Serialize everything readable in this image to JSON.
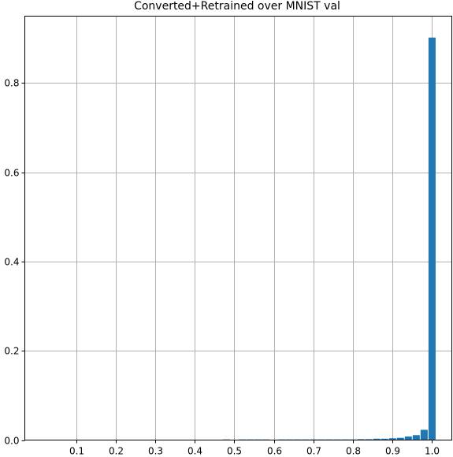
{
  "chart_data": {
    "type": "bar",
    "title": "Converted+Retrained over MNIST val",
    "xlabel": "",
    "ylabel": "",
    "xlim": [
      -0.03,
      1.05
    ],
    "ylim": [
      0,
      0.95
    ],
    "grid": true,
    "bar_width": 0.018,
    "bar_color": "#1f77b4",
    "x_ticks": [
      0.1,
      0.2,
      0.3,
      0.4,
      0.5,
      0.6,
      0.7,
      0.8,
      0.9,
      1.0
    ],
    "x_tick_labels": [
      "0.1",
      "0.2",
      "0.3",
      "0.4",
      "0.5",
      "0.6",
      "0.7",
      "0.8",
      "0.9",
      "1.0"
    ],
    "y_ticks": [
      0.0,
      0.2,
      0.4,
      0.6,
      0.8
    ],
    "y_tick_labels": [
      "0.0",
      "0.2",
      "0.4",
      "0.6",
      "0.8"
    ],
    "x": [
      0.48,
      0.52,
      0.54,
      0.56,
      0.58,
      0.62,
      0.64,
      0.66,
      0.68,
      0.7,
      0.72,
      0.74,
      0.76,
      0.78,
      0.8,
      0.82,
      0.84,
      0.86,
      0.88,
      0.9,
      0.92,
      0.94,
      0.96,
      0.98,
      1.0
    ],
    "values": [
      0.001,
      0.001,
      0.001,
      0.001,
      0.001,
      0.001,
      0.001,
      0.001,
      0.001,
      0.001,
      0.001,
      0.001,
      0.001,
      0.001,
      0.001,
      0.002,
      0.002,
      0.003,
      0.003,
      0.004,
      0.005,
      0.008,
      0.011,
      0.023,
      0.902
    ]
  }
}
